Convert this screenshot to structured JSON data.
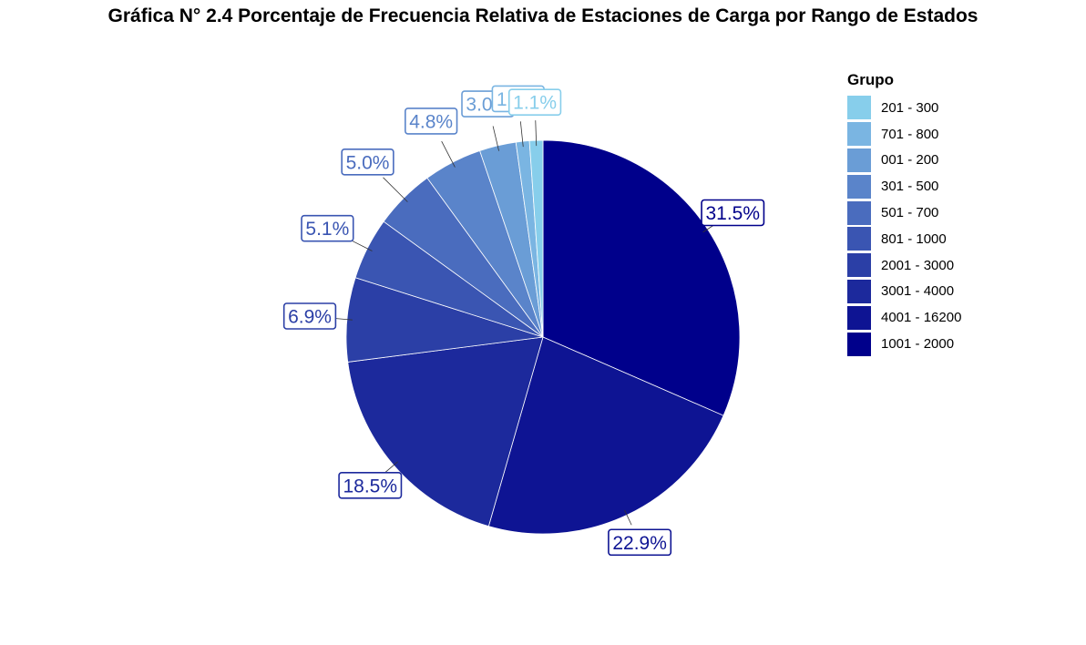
{
  "chart_data": {
    "type": "pie",
    "title": "Gráfica N° 2.4 Porcentaje de Frecuencia Relativa de Estaciones de Carga por Rango de Estados",
    "legend_title": "Grupo",
    "legend_position": "right",
    "slices": [
      {
        "name": "1001 - 2000",
        "value": 31.5,
        "label": "31.5%",
        "color": "#00008B"
      },
      {
        "name": "4001 - 16200",
        "value": 22.9,
        "label": "22.9%",
        "color": "#0E1493"
      },
      {
        "name": "3001 - 4000",
        "value": 18.5,
        "label": "18.5%",
        "color": "#1C299C"
      },
      {
        "name": "2001 - 3000",
        "value": 6.9,
        "label": "6.9%",
        "color": "#2B3FA6"
      },
      {
        "name": "801 - 1000",
        "value": 5.1,
        "label": "5.1%",
        "color": "#3A55B2"
      },
      {
        "name": "501 - 700",
        "value": 5.0,
        "label": "5.0%",
        "color": "#4A6CBE"
      },
      {
        "name": "301 - 500",
        "value": 4.8,
        "label": "4.8%",
        "color": "#5A84CA"
      },
      {
        "name": "001 - 200",
        "value": 3.0,
        "label": "3.0%",
        "color": "#6A9DD6"
      },
      {
        "name": "701 - 800",
        "value": 1.1,
        "label": "1.1%",
        "color": "#7AB5E2"
      },
      {
        "name": "201 - 300",
        "value": 1.1,
        "label": "1.1%",
        "color": "#87CEEB"
      }
    ],
    "legend_order": [
      "201 - 300",
      "701 - 800",
      "001 - 200",
      "301 - 500",
      "501 - 700",
      "801 - 1000",
      "2001 - 3000",
      "3001 - 4000",
      "4001 - 16200",
      "1001 - 2000"
    ]
  }
}
